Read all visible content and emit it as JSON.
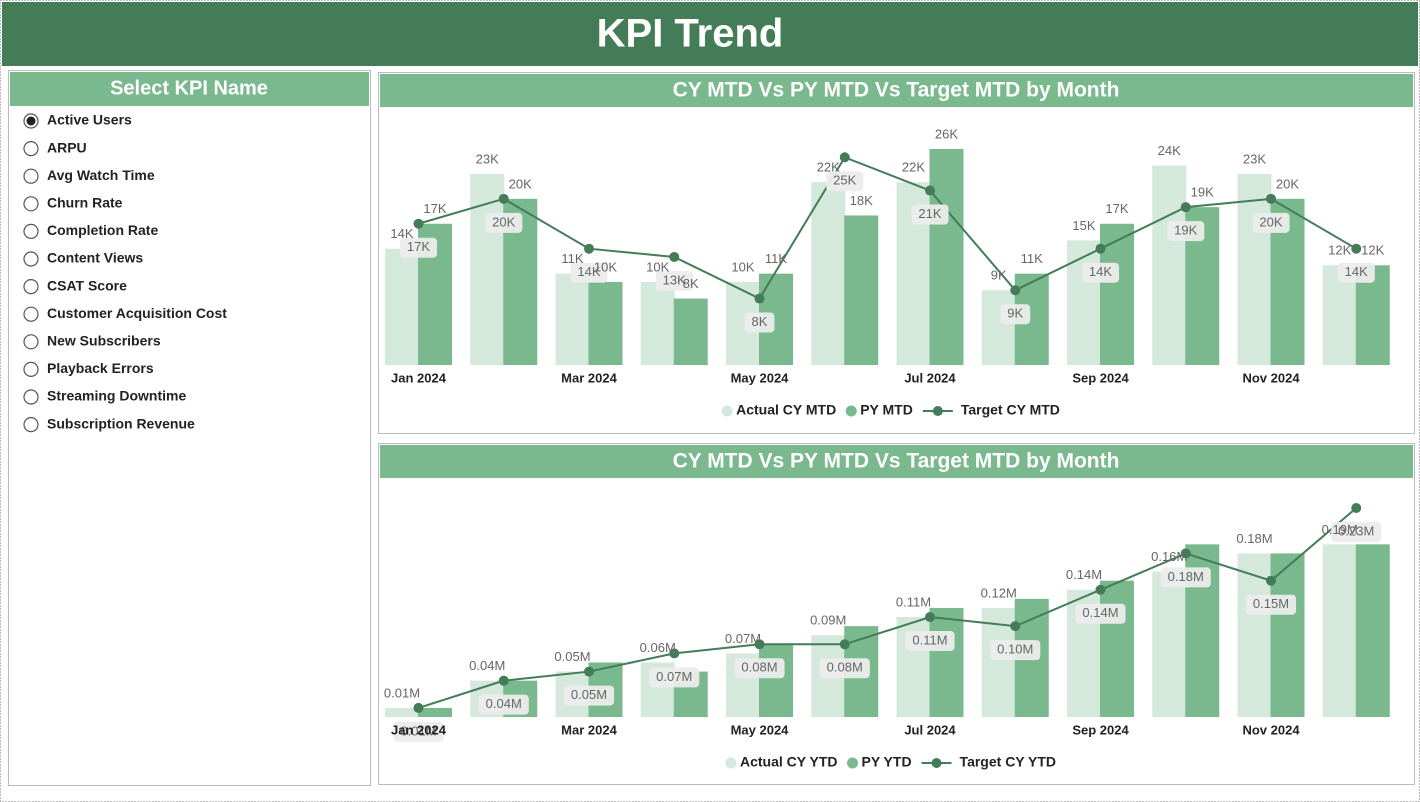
{
  "header": {
    "title": "KPI Trend"
  },
  "slicer": {
    "title": "Select KPI Name",
    "selected": 0,
    "options": [
      "Active Users",
      "ARPU",
      "Avg Watch Time",
      "Churn Rate",
      "Completion Rate",
      "Content Views",
      "CSAT Score",
      "Customer Acquisition Cost",
      "New Subscribers",
      "Playback Errors",
      "Streaming Downtime",
      "Subscription Revenue"
    ]
  },
  "chart_data": [
    {
      "type": "combo",
      "title": "CY MTD Vs PY MTD Vs Target MTD by Month",
      "categories": [
        "Jan 2024",
        null,
        "Mar 2024",
        null,
        "May 2024",
        null,
        "Jul 2024",
        null,
        "Sep 2024",
        null,
        "Nov 2024",
        null
      ],
      "series": [
        {
          "name": "Actual CY MTD",
          "kind": "bar",
          "color": "#d5e8dc",
          "values": [
            14000,
            23000,
            11000,
            10000,
            10000,
            22000,
            22000,
            9000,
            15000,
            24000,
            23000,
            12000
          ],
          "value_labels": [
            "14K",
            "23K",
            "11K",
            "10K",
            "10K",
            "22K",
            "22K",
            "9K",
            "15K",
            "24K",
            "23K",
            "12K"
          ]
        },
        {
          "name": "PY MTD",
          "kind": "bar",
          "color": "#7ab88e",
          "values": [
            17000,
            20000,
            10000,
            8000,
            11000,
            18000,
            26000,
            11000,
            17000,
            19000,
            20000,
            12000
          ],
          "value_labels": [
            "17K",
            "20K",
            "10K",
            "8K",
            "11K",
            "18K",
            "26K",
            "11K",
            "17K",
            "19K",
            "20K",
            "12K"
          ]
        },
        {
          "name": "Target CY MTD",
          "kind": "line",
          "color": "#437c57",
          "values": [
            17000,
            20000,
            14000,
            13000,
            8000,
            25000,
            21000,
            9000,
            14000,
            19000,
            20000,
            14000
          ],
          "value_labels": [
            "17K",
            "20K",
            "14K",
            "13K",
            "8K",
            "25K",
            "21K",
            "9K",
            "14K",
            "19K",
            "20K",
            "14K"
          ]
        }
      ]
    },
    {
      "type": "combo",
      "title": "CY MTD Vs PY MTD Vs Target MTD by Month",
      "categories": [
        "Jan 2024",
        null,
        "Mar 2024",
        null,
        "May 2024",
        null,
        "Jul 2024",
        null,
        "Sep 2024",
        null,
        "Nov 2024",
        null
      ],
      "series": [
        {
          "name": "Actual CY YTD",
          "kind": "bar",
          "color": "#d5e8dc",
          "values": [
            0.01,
            0.04,
            0.05,
            0.06,
            0.07,
            0.09,
            0.11,
            0.12,
            0.14,
            0.16,
            0.18,
            0.19
          ],
          "value_labels": [
            "0.01M",
            "0.04M",
            "0.05M",
            "0.06M",
            "0.07M",
            "0.09M",
            "0.11M",
            "0.12M",
            "0.14M",
            "0.16M",
            "0.18M",
            "0.19M"
          ]
        },
        {
          "name": "PY YTD",
          "kind": "bar",
          "color": "#7ab88e",
          "values": [
            0.01,
            0.04,
            0.06,
            0.05,
            0.08,
            0.1,
            0.12,
            0.13,
            0.15,
            0.19,
            0.18,
            0.19
          ]
        },
        {
          "name": "Target CY YTD",
          "kind": "line",
          "color": "#437c57",
          "values": [
            0.01,
            0.04,
            0.05,
            0.07,
            0.08,
            0.08,
            0.11,
            0.1,
            0.14,
            0.18,
            0.15,
            0.23
          ],
          "value_labels": [
            "0.01M",
            "0.04M",
            "0.05M",
            "0.07M",
            "0.08M",
            "0.08M",
            "0.11M",
            "0.10M",
            "0.14M",
            "0.18M",
            "0.15M",
            "0.23M"
          ]
        }
      ]
    }
  ]
}
